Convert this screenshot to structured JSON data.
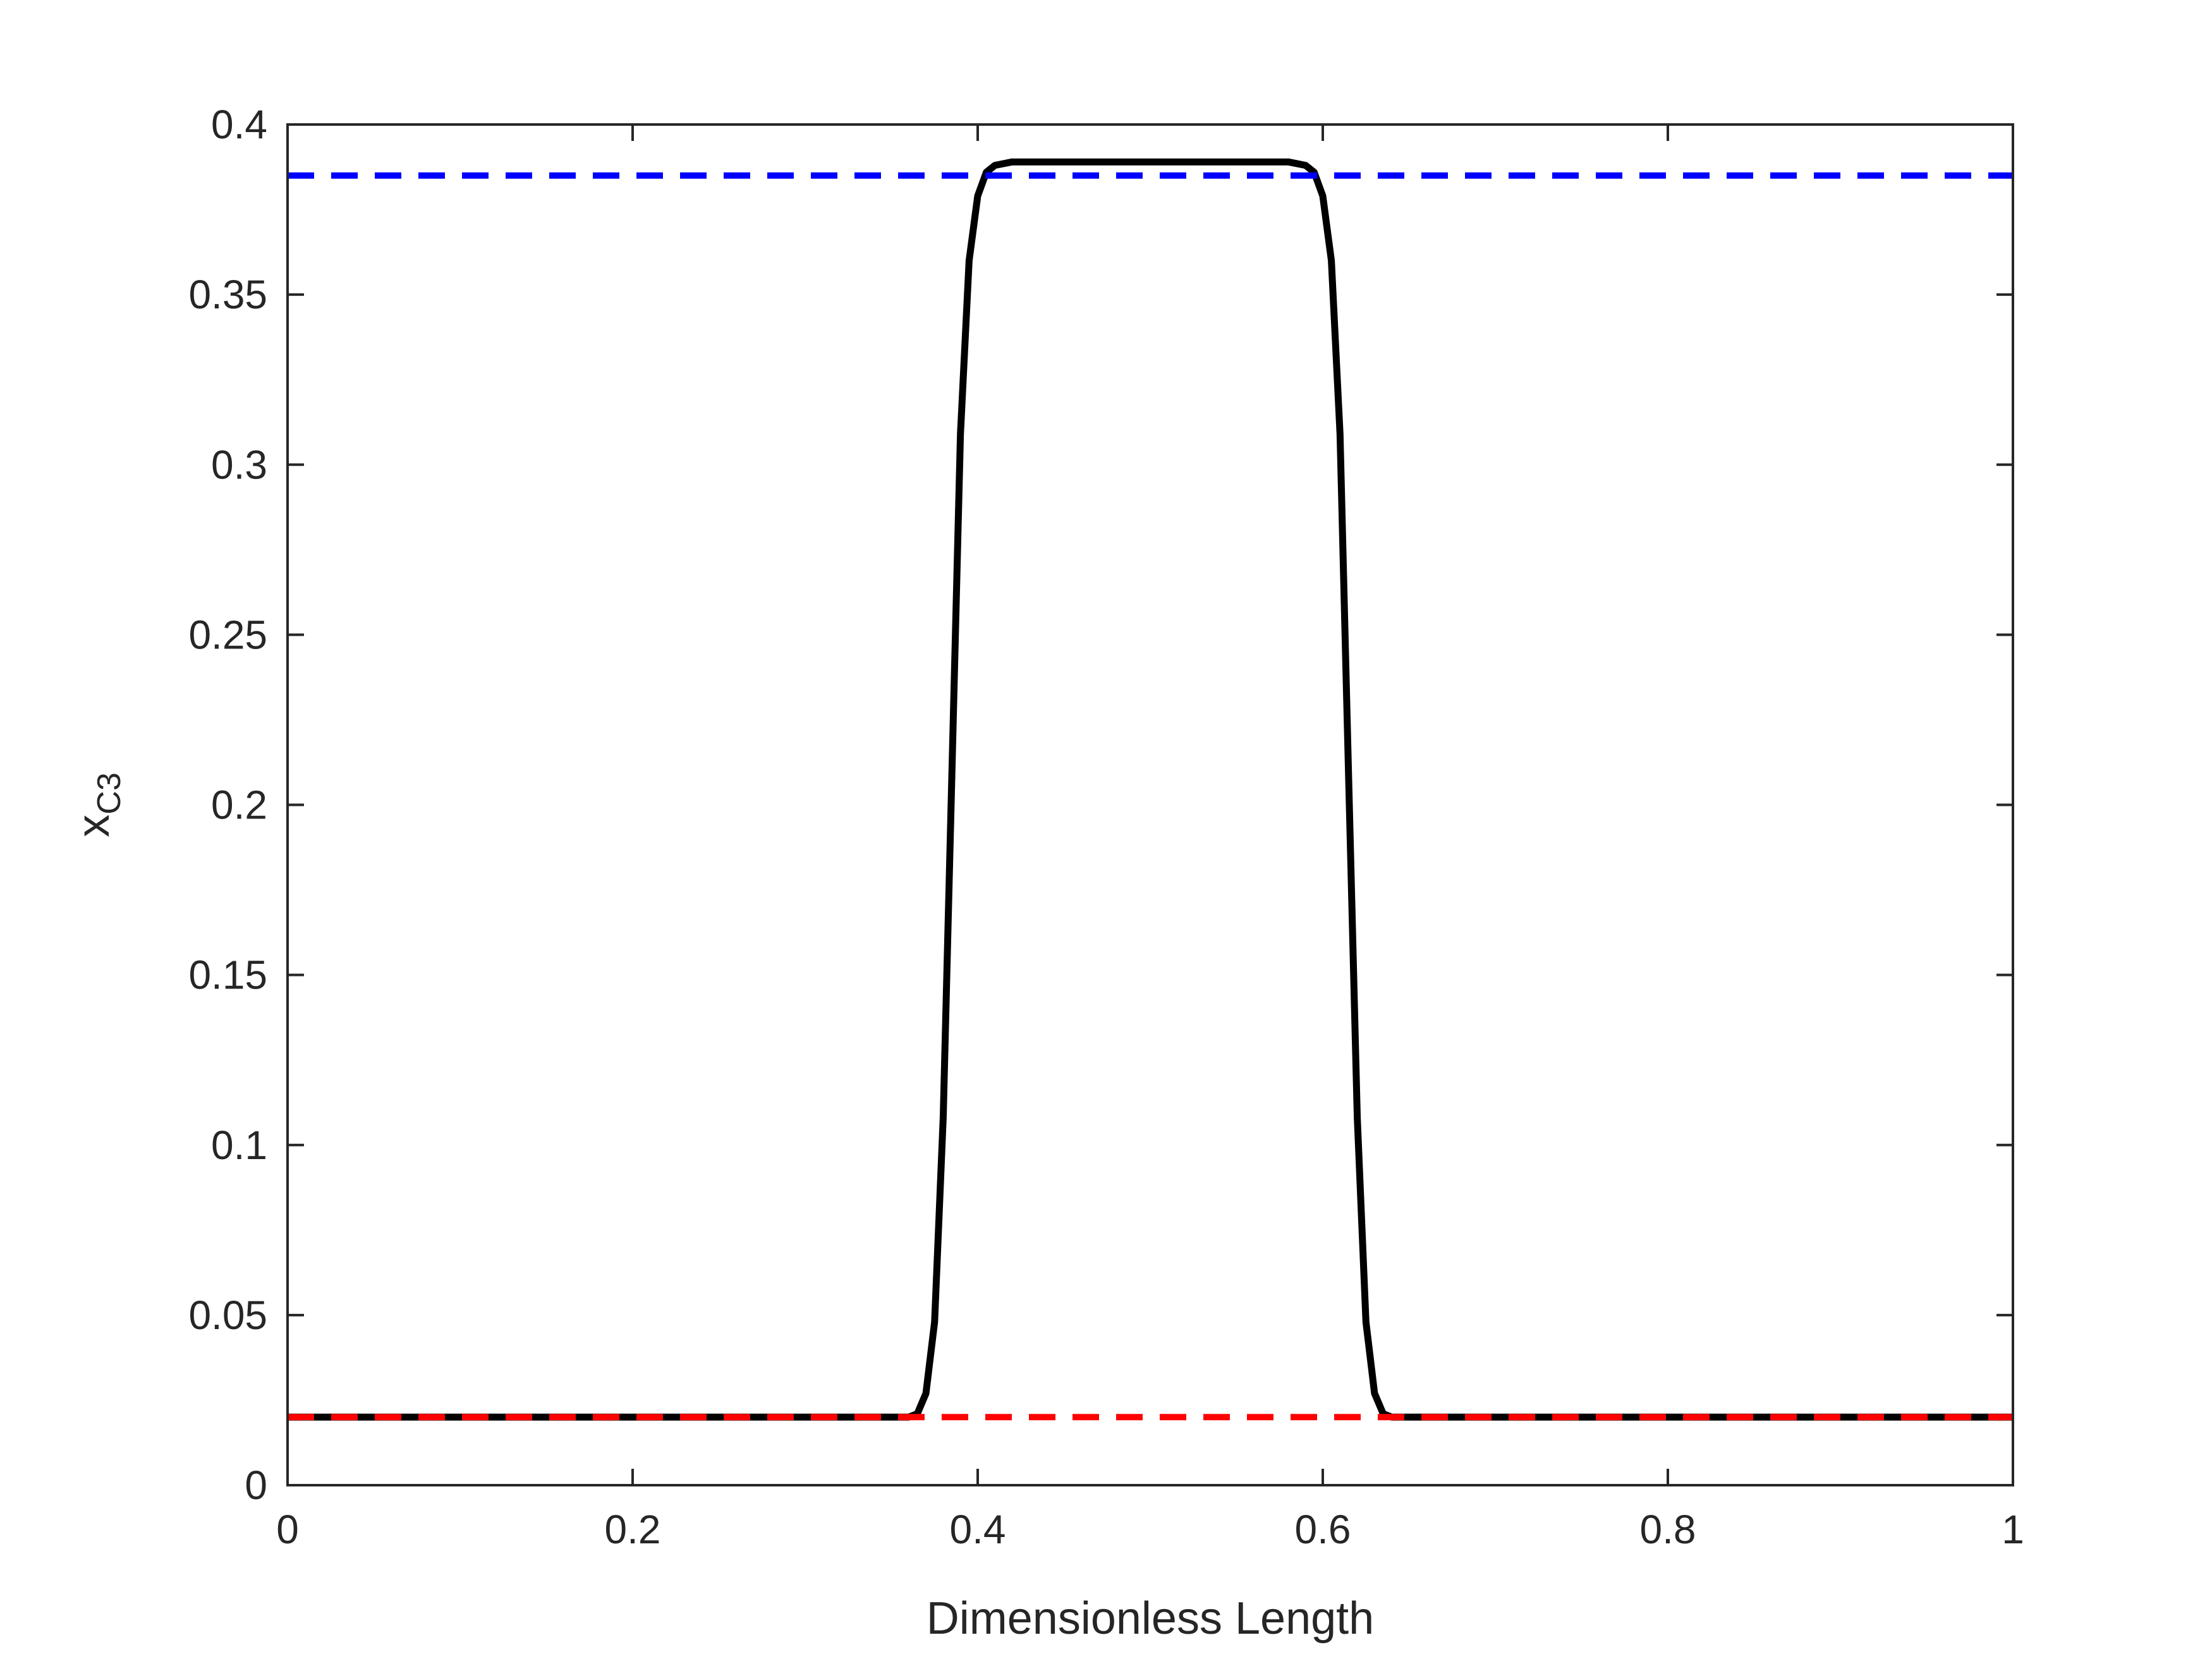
{
  "chart_data": {
    "type": "line",
    "xlabel": "Dimensionless Length",
    "ylabel": {
      "main": "x",
      "subscript": "C3"
    },
    "xlim": [
      0,
      1
    ],
    "ylim": [
      0,
      0.4
    ],
    "xticks": [
      "0",
      "0.2",
      "0.4",
      "0.6",
      "0.8",
      "1"
    ],
    "yticks": [
      "0",
      "0.05",
      "0.1",
      "0.15",
      "0.2",
      "0.25",
      "0.3",
      "0.35",
      "0.4"
    ],
    "grid": false,
    "box": true,
    "series": [
      {
        "style": "solid",
        "color": "#000000",
        "x": [
          0,
          0.1,
          0.2,
          0.3,
          0.36,
          0.365,
          0.37,
          0.375,
          0.38,
          0.385,
          0.39,
          0.395,
          0.4,
          0.405,
          0.41,
          0.42,
          0.45,
          0.5,
          0.55,
          0.58,
          0.59,
          0.595,
          0.6,
          0.605,
          0.61,
          0.615,
          0.62,
          0.625,
          0.63,
          0.635,
          0.64,
          0.7,
          0.8,
          0.9,
          1.0
        ],
        "y": [
          0.02,
          0.02,
          0.02,
          0.02,
          0.02,
          0.021,
          0.027,
          0.048,
          0.108,
          0.208,
          0.309,
          0.36,
          0.379,
          0.386,
          0.388,
          0.389,
          0.389,
          0.389,
          0.389,
          0.389,
          0.388,
          0.386,
          0.379,
          0.36,
          0.309,
          0.208,
          0.108,
          0.048,
          0.027,
          0.021,
          0.02,
          0.02,
          0.02,
          0.02,
          0.02
        ]
      },
      {
        "style": "dashed",
        "color": "#0000ff",
        "x": [
          0,
          1
        ],
        "y": [
          0.385,
          0.385
        ]
      },
      {
        "style": "dashed",
        "color": "#ff0000",
        "x": [
          0,
          1
        ],
        "y": [
          0.02,
          0.02
        ]
      }
    ]
  }
}
